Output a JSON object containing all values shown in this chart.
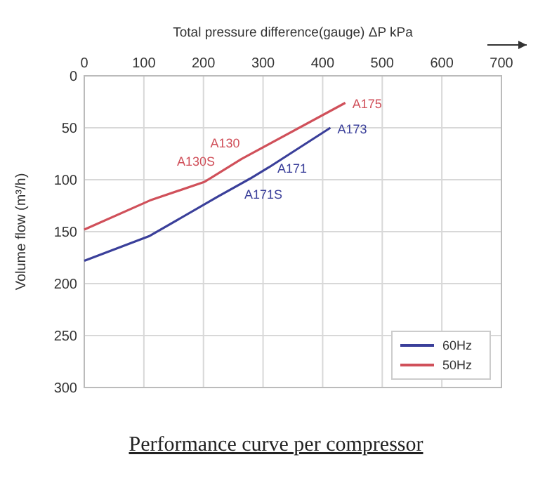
{
  "chart_data": {
    "type": "line",
    "title": "Performance curve per compressor",
    "xlabel": "Total pressure difference(gauge) ΔP  kPa",
    "ylabel": "Volume flow (m³/h)",
    "xlim": [
      0,
      700
    ],
    "xticks": [
      0,
      100,
      200,
      300,
      400,
      500,
      600,
      700
    ],
    "ylim": [
      300,
      0
    ],
    "yticks": [
      0,
      50,
      100,
      150,
      200,
      250,
      300
    ],
    "grid": true,
    "legend": "bottom right",
    "series": [
      {
        "name": "60Hz",
        "color": "#3a3f9a",
        "x": [
          0,
          110,
          225,
          278,
          310,
          413
        ],
        "values": [
          178,
          154,
          116,
          99,
          88,
          50
        ]
      },
      {
        "name": "50Hz",
        "color": "#d0505a",
        "x": [
          0,
          110,
          202,
          264,
          438
        ],
        "values": [
          148,
          120,
          102,
          80,
          26
        ]
      }
    ],
    "annotations": [
      {
        "text": "A173",
        "x": 413,
        "y": 50
      },
      {
        "text": "A171",
        "x": 310,
        "y": 88
      },
      {
        "text": "A171S",
        "x": 278,
        "y": 99
      },
      {
        "text": "A175",
        "x": 438,
        "y": 26
      },
      {
        "text": "A130",
        "x": 273,
        "y": 74
      },
      {
        "text": "A130S",
        "x": 250,
        "y": 80
      }
    ]
  }
}
